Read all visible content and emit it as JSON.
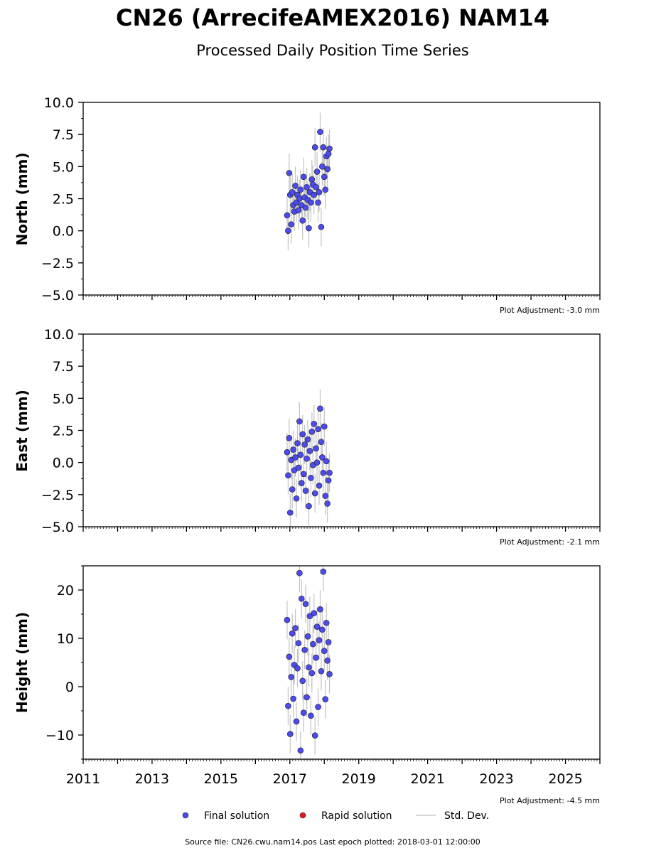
{
  "title": "CN26 (ArrecifeAMEX2016) NAM14",
  "subtitle": "Processed Daily Position Time Series",
  "x_tick_labels": [
    "2011",
    "2013",
    "2015",
    "2017",
    "2019",
    "2021",
    "2023",
    "2025"
  ],
  "legend": {
    "final": "Final solution",
    "rapid": "Rapid solution",
    "std": "Std. Dev."
  },
  "footer": "Source file: CN26.cwu.nam14.pos  Last epoch plotted: 2018-03-01 12:00:00",
  "colors": {
    "final": "#4b4bef",
    "rapid": "#e31a1c",
    "std": "#999999"
  },
  "chart_data": [
    {
      "type": "scatter",
      "ylabel": "North (mm)",
      "adjustment": "Plot Adjustment: -3.0 mm",
      "xlim": [
        2011.0,
        2026.0
      ],
      "ylim": [
        -5,
        10
      ],
      "yticks": [
        -5.0,
        -2.5,
        0.0,
        2.5,
        5.0,
        7.5,
        10.0
      ],
      "ytick_labels": [
        "−5.0",
        "−2.5",
        "0.0",
        "2.5",
        "5.0",
        "7.5",
        "10.0"
      ],
      "series": [
        {
          "name": "Final solution",
          "x": [
            2016.92,
            2016.95,
            2016.98,
            2017.01,
            2017.04,
            2017.07,
            2017.1,
            2017.13,
            2017.16,
            2017.19,
            2017.22,
            2017.25,
            2017.28,
            2017.31,
            2017.34,
            2017.37,
            2017.4,
            2017.43,
            2017.46,
            2017.49,
            2017.52,
            2017.55,
            2017.58,
            2017.61,
            2017.64,
            2017.67,
            2017.7,
            2017.73,
            2017.76,
            2017.79,
            2017.82,
            2017.85,
            2017.88,
            2017.91,
            2017.94,
            2017.97,
            2018.0,
            2018.03,
            2018.06,
            2018.09,
            2018.12,
            2018.15
          ],
          "y": [
            1.2,
            0.0,
            4.5,
            2.8,
            0.5,
            3.0,
            2.0,
            1.5,
            3.5,
            2.2,
            2.8,
            1.6,
            2.5,
            3.2,
            2.0,
            0.8,
            4.2,
            2.6,
            1.8,
            3.4,
            2.4,
            0.2,
            3.0,
            2.2,
            4.0,
            3.6,
            2.8,
            6.5,
            3.4,
            4.6,
            2.2,
            3.0,
            7.7,
            0.3,
            5.0,
            6.5,
            4.2,
            3.2,
            5.8,
            4.8,
            6.0,
            6.4
          ]
        }
      ]
    },
    {
      "type": "scatter",
      "ylabel": "East (mm)",
      "adjustment": "Plot Adjustment: -2.1 mm",
      "xlim": [
        2011.0,
        2026.0
      ],
      "ylim": [
        -5,
        10
      ],
      "yticks": [
        -5.0,
        -2.5,
        0.0,
        2.5,
        5.0,
        7.5,
        10.0
      ],
      "ytick_labels": [
        "−5.0",
        "−2.5",
        "0.0",
        "2.5",
        "5.0",
        "7.5",
        "10.0"
      ],
      "series": [
        {
          "name": "Final solution",
          "x": [
            2016.92,
            2016.95,
            2016.98,
            2017.01,
            2017.04,
            2017.07,
            2017.1,
            2017.13,
            2017.16,
            2017.19,
            2017.22,
            2017.25,
            2017.28,
            2017.31,
            2017.34,
            2017.37,
            2017.4,
            2017.43,
            2017.46,
            2017.49,
            2017.52,
            2017.55,
            2017.58,
            2017.61,
            2017.64,
            2017.67,
            2017.7,
            2017.73,
            2017.76,
            2017.79,
            2017.82,
            2017.85,
            2017.88,
            2017.91,
            2017.94,
            2017.97,
            2018.0,
            2018.03,
            2018.06,
            2018.09,
            2018.12,
            2018.15
          ],
          "y": [
            0.8,
            -1.0,
            1.9,
            -3.9,
            0.2,
            -2.1,
            1.0,
            -0.6,
            0.4,
            -2.8,
            1.5,
            -0.4,
            3.2,
            0.6,
            -1.6,
            2.2,
            -0.9,
            1.4,
            -2.2,
            0.3,
            1.8,
            -3.4,
            0.9,
            -1.2,
            2.4,
            -0.2,
            3.0,
            -2.4,
            1.1,
            0.0,
            2.6,
            -1.8,
            4.2,
            1.6,
            0.4,
            -0.8,
            2.8,
            -2.6,
            0.1,
            -3.2,
            -1.4,
            -0.8
          ]
        }
      ]
    },
    {
      "type": "scatter",
      "ylabel": "Height (mm)",
      "adjustment": "Plot Adjustment: -4.5 mm",
      "xlim": [
        2011.0,
        2026.0
      ],
      "ylim": [
        -15,
        25
      ],
      "yticks": [
        -10,
        0,
        10,
        20
      ],
      "ytick_labels": [
        "−10",
        "0",
        "10",
        "20"
      ],
      "series": [
        {
          "name": "Final solution",
          "x": [
            2016.92,
            2016.95,
            2016.98,
            2017.01,
            2017.04,
            2017.07,
            2017.1,
            2017.13,
            2017.16,
            2017.19,
            2017.22,
            2017.25,
            2017.28,
            2017.31,
            2017.34,
            2017.37,
            2017.4,
            2017.43,
            2017.46,
            2017.49,
            2017.52,
            2017.55,
            2017.58,
            2017.61,
            2017.64,
            2017.67,
            2017.7,
            2017.73,
            2017.76,
            2017.79,
            2017.82,
            2017.85,
            2017.88,
            2017.91,
            2017.94,
            2017.97,
            2018.0,
            2018.03,
            2018.06,
            2018.09,
            2018.12,
            2018.15
          ],
          "y": [
            13.8,
            -4.0,
            6.2,
            -9.8,
            2.0,
            11.0,
            -2.5,
            4.5,
            12.1,
            -7.2,
            3.8,
            9.0,
            23.5,
            -13.2,
            18.2,
            1.2,
            -5.4,
            7.6,
            17.1,
            -2.2,
            10.4,
            4.0,
            14.6,
            -6.0,
            2.8,
            8.8,
            15.2,
            -10.1,
            6.0,
            12.4,
            -4.2,
            9.6,
            16.0,
            3.2,
            11.8,
            23.8,
            7.4,
            -2.6,
            13.2,
            5.4,
            9.2,
            2.6
          ]
        }
      ]
    }
  ]
}
